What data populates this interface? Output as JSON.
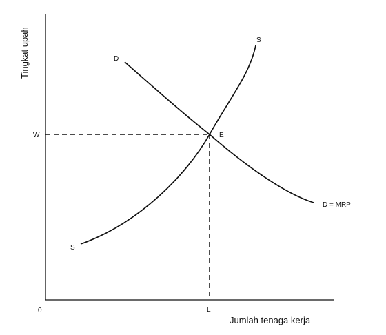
{
  "diagram": {
    "axes": {
      "y_label": "Tingkat upah",
      "x_label": "Jumlah tenaga kerja",
      "origin_label": "0"
    },
    "curves": {
      "demand_start_label": "D",
      "demand_end_label": "D = MRP",
      "supply_start_label": "S",
      "supply_end_label": "S"
    },
    "equilibrium": {
      "point_label": "E",
      "wage_label": "W",
      "labor_label": "L"
    },
    "colors": {
      "line": "#111111",
      "background": "#ffffff"
    }
  }
}
